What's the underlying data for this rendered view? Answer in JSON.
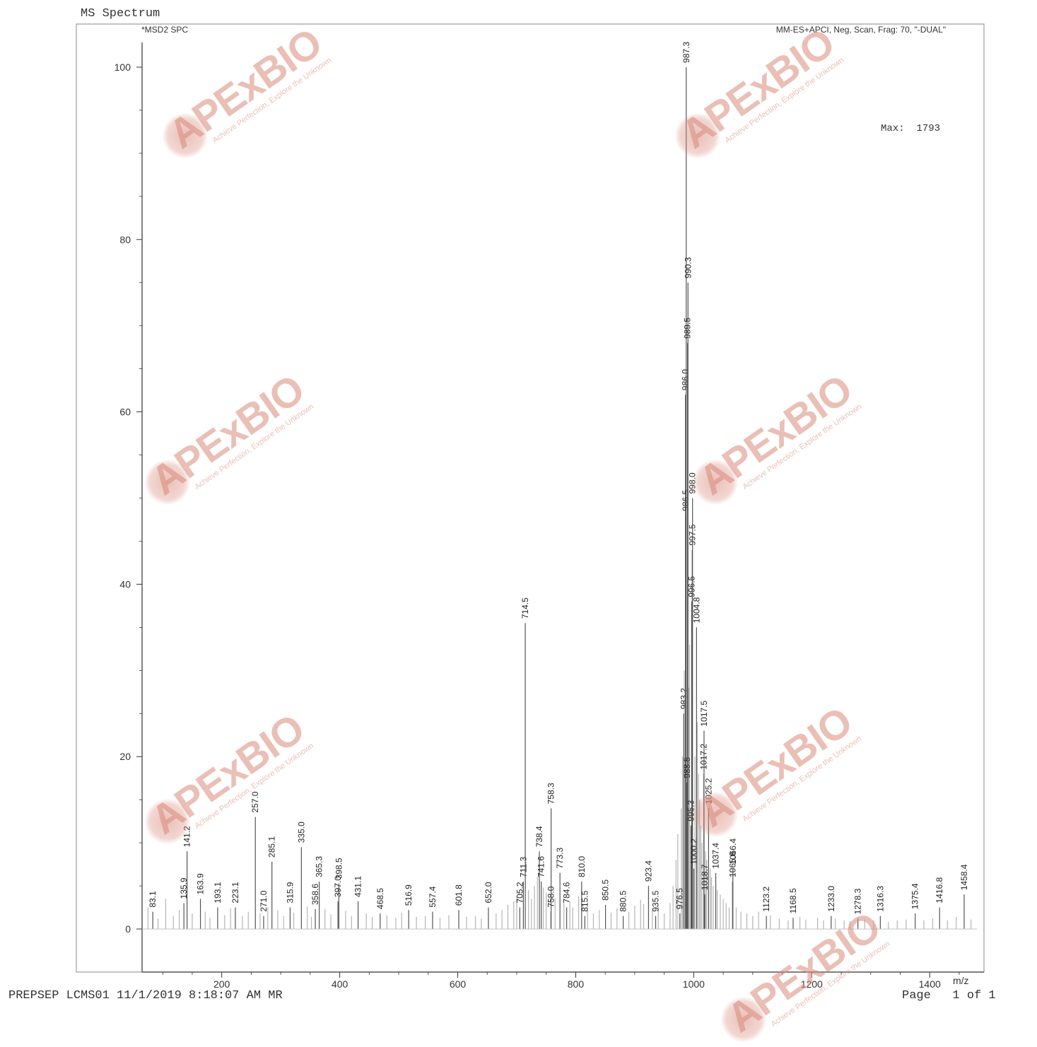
{
  "page": {
    "title": "MS Spectrum",
    "footer_left": "PREPSEP LCMS01 11/1/2019 8:18:07 AM MR",
    "footer_right": "Page   1 of 1"
  },
  "watermark": {
    "brand": "APExBIO",
    "tagline": "Achieve Perfection, Explore the Unknown"
  },
  "colors": {
    "axis": "#333333",
    "major_peak": "#555555",
    "minor_peak": "#b5b5b5",
    "watermark": "#d98b7c"
  },
  "chart_data": {
    "type": "bar",
    "title": "MS Spectrum",
    "signal_label": "*MSD2 SPC",
    "method_label": "MM-ES+APCI, Neg, Scan, Frag: 70, \"-DUAL\"",
    "max_label": "Max:  1793",
    "xlabel": "m/z",
    "ylabel": "",
    "xlim": [
      65,
      1492
    ],
    "ylim": [
      -5,
      105
    ],
    "xticks": [
      200,
      400,
      600,
      800,
      1000,
      1200,
      1400
    ],
    "yticks": [
      0,
      20,
      40,
      60,
      80,
      100
    ],
    "grid": false,
    "legend": "none",
    "labeled_peaks": [
      {
        "x": 83.1,
        "y": 2.0,
        "label": "83.1"
      },
      {
        "x": 135.9,
        "y": 3.0,
        "label": "135.9"
      },
      {
        "x": 141.2,
        "y": 9.0,
        "label": "141.2"
      },
      {
        "x": 163.9,
        "y": 3.5,
        "label": "163.9"
      },
      {
        "x": 193.1,
        "y": 2.5,
        "label": "193.1"
      },
      {
        "x": 223.1,
        "y": 2.5,
        "label": "223.1"
      },
      {
        "x": 257.0,
        "y": 13.0,
        "label": "257.0"
      },
      {
        "x": 271.0,
        "y": 1.5,
        "label": "271.0"
      },
      {
        "x": 285.1,
        "y": 7.8,
        "label": "285.1"
      },
      {
        "x": 315.9,
        "y": 2.5,
        "label": "315.9"
      },
      {
        "x": 335.0,
        "y": 9.5,
        "label": "335.0"
      },
      {
        "x": 358.6,
        "y": 2.3,
        "label": "358.6"
      },
      {
        "x": 365.3,
        "y": 5.5,
        "label": "365.3"
      },
      {
        "x": 397.0,
        "y": 3.2,
        "label": "397.0"
      },
      {
        "x": 398.5,
        "y": 5.3,
        "label": "398.5"
      },
      {
        "x": 431.1,
        "y": 3.2,
        "label": "431.1"
      },
      {
        "x": 468.5,
        "y": 1.8,
        "label": "468.5"
      },
      {
        "x": 516.9,
        "y": 2.2,
        "label": "516.9"
      },
      {
        "x": 557.4,
        "y": 2.0,
        "label": "557.4"
      },
      {
        "x": 601.8,
        "y": 2.2,
        "label": "601.8"
      },
      {
        "x": 652.0,
        "y": 2.5,
        "label": "652.0"
      },
      {
        "x": 705.2,
        "y": 2.5,
        "label": "705.2"
      },
      {
        "x": 711.3,
        "y": 5.5,
        "label": "711.3"
      },
      {
        "x": 714.5,
        "y": 35.5,
        "label": "714.5"
      },
      {
        "x": 738.4,
        "y": 9.0,
        "label": "738.4"
      },
      {
        "x": 741.6,
        "y": 5.5,
        "label": "741.6"
      },
      {
        "x": 758.0,
        "y": 2.0,
        "label": "758.0"
      },
      {
        "x": 758.3,
        "y": 14.0,
        "label": "758.3"
      },
      {
        "x": 773.3,
        "y": 6.5,
        "label": "773.3"
      },
      {
        "x": 784.6,
        "y": 2.5,
        "label": "784.6"
      },
      {
        "x": 810.0,
        "y": 5.5,
        "label": "810.0"
      },
      {
        "x": 815.5,
        "y": 1.5,
        "label": "815.5"
      },
      {
        "x": 850.5,
        "y": 2.8,
        "label": "850.5"
      },
      {
        "x": 880.5,
        "y": 1.5,
        "label": "880.5"
      },
      {
        "x": 923.4,
        "y": 5.0,
        "label": "923.4"
      },
      {
        "x": 935.5,
        "y": 1.5,
        "label": "935.5"
      },
      {
        "x": 976.5,
        "y": 1.8,
        "label": "976.5"
      },
      {
        "x": 983.2,
        "y": 25.0,
        "label": "983.2"
      },
      {
        "x": 986.0,
        "y": 62.0,
        "label": "986.0"
      },
      {
        "x": 986.5,
        "y": 48.0,
        "label": "986.5"
      },
      {
        "x": 987.3,
        "y": 100.0,
        "label": "987.3"
      },
      {
        "x": 988.5,
        "y": 17.0,
        "label": "988.5"
      },
      {
        "x": 989.5,
        "y": 68.0,
        "label": "989.5"
      },
      {
        "x": 990.3,
        "y": 75.0,
        "label": "990.3"
      },
      {
        "x": 995.3,
        "y": 12.0,
        "label": "995.3"
      },
      {
        "x": 996.5,
        "y": 38.0,
        "label": "996.5"
      },
      {
        "x": 997.5,
        "y": 44.0,
        "label": "997.5"
      },
      {
        "x": 998.0,
        "y": 50.0,
        "label": "998.0"
      },
      {
        "x": 1000.2,
        "y": 7.0,
        "label": "1000.2"
      },
      {
        "x": 1004.8,
        "y": 35.0,
        "label": "1004.8"
      },
      {
        "x": 1017.2,
        "y": 18.0,
        "label": "1017.2"
      },
      {
        "x": 1017.5,
        "y": 23.0,
        "label": "1017.5"
      },
      {
        "x": 1018.7,
        "y": 4.0,
        "label": "1018.7"
      },
      {
        "x": 1025.2,
        "y": 14.0,
        "label": "1025.2"
      },
      {
        "x": 1037.4,
        "y": 6.5,
        "label": "1037.4"
      },
      {
        "x": 1065.8,
        "y": 5.5,
        "label": "1065.8"
      },
      {
        "x": 1066.4,
        "y": 7.0,
        "label": "1066.4"
      },
      {
        "x": 1123.2,
        "y": 1.5,
        "label": "1123.2"
      },
      {
        "x": 1168.5,
        "y": 1.3,
        "label": "1168.5"
      },
      {
        "x": 1233.0,
        "y": 1.5,
        "label": "1233.0"
      },
      {
        "x": 1278.3,
        "y": 1.2,
        "label": "1278.3"
      },
      {
        "x": 1316.3,
        "y": 1.5,
        "label": "1316.3"
      },
      {
        "x": 1375.4,
        "y": 1.8,
        "label": "1375.4"
      },
      {
        "x": 1416.8,
        "y": 2.5,
        "label": "1416.8"
      },
      {
        "x": 1458.4,
        "y": 4.0,
        "label": "1458.4"
      }
    ],
    "minor_peaks": [
      [
        75,
        2.5
      ],
      [
        92,
        1.2
      ],
      [
        105,
        3.5
      ],
      [
        118,
        1.5
      ],
      [
        128,
        2.2
      ],
      [
        150,
        1.8
      ],
      [
        172,
        2.0
      ],
      [
        180,
        1.3
      ],
      [
        205,
        1.6
      ],
      [
        215,
        2.4
      ],
      [
        235,
        1.5
      ],
      [
        245,
        2.0
      ],
      [
        265,
        1.8
      ],
      [
        278,
        2.5
      ],
      [
        295,
        2.2
      ],
      [
        305,
        1.5
      ],
      [
        322,
        1.9
      ],
      [
        345,
        2.6
      ],
      [
        352,
        1.4
      ],
      [
        375,
        2.3
      ],
      [
        385,
        1.7
      ],
      [
        410,
        2.1
      ],
      [
        420,
        1.5
      ],
      [
        445,
        1.8
      ],
      [
        455,
        1.4
      ],
      [
        480,
        1.6
      ],
      [
        495,
        1.3
      ],
      [
        505,
        1.9
      ],
      [
        530,
        1.4
      ],
      [
        545,
        1.5
      ],
      [
        570,
        1.3
      ],
      [
        585,
        1.6
      ],
      [
        615,
        1.4
      ],
      [
        630,
        1.5
      ],
      [
        640,
        1.2
      ],
      [
        665,
        1.8
      ],
      [
        675,
        2.2
      ],
      [
        685,
        2.8
      ],
      [
        695,
        3.2
      ],
      [
        700,
        3.8
      ],
      [
        720,
        4.5
      ],
      [
        725,
        3.5
      ],
      [
        730,
        5.0
      ],
      [
        735,
        6.0
      ],
      [
        745,
        4.8
      ],
      [
        750,
        4.2
      ],
      [
        765,
        3.6
      ],
      [
        780,
        3.0
      ],
      [
        790,
        3.2
      ],
      [
        795,
        2.5
      ],
      [
        805,
        3.8
      ],
      [
        820,
        2.4
      ],
      [
        830,
        1.8
      ],
      [
        840,
        2.2
      ],
      [
        860,
        1.9
      ],
      [
        870,
        2.4
      ],
      [
        890,
        2.0
      ],
      [
        900,
        2.7
      ],
      [
        910,
        3.4
      ],
      [
        915,
        2.9
      ],
      [
        930,
        2.4
      ],
      [
        940,
        2.6
      ],
      [
        950,
        1.8
      ],
      [
        960,
        3.0
      ],
      [
        965,
        5.0
      ],
      [
        970,
        8.0
      ],
      [
        973,
        11.0
      ],
      [
        979,
        14.0
      ],
      [
        981,
        20.0
      ],
      [
        984,
        30.0
      ],
      [
        992,
        28.0
      ],
      [
        993,
        33.0
      ],
      [
        1002,
        20.0
      ],
      [
        1006,
        24.0
      ],
      [
        1008,
        18.0
      ],
      [
        1010,
        15.0
      ],
      [
        1012,
        12.0
      ],
      [
        1014,
        10.0
      ],
      [
        1020,
        9.0
      ],
      [
        1022,
        8.0
      ],
      [
        1028,
        7.0
      ],
      [
        1030,
        6.0
      ],
      [
        1033,
        5.0
      ],
      [
        1040,
        4.5
      ],
      [
        1045,
        4.0
      ],
      [
        1050,
        3.5
      ],
      [
        1055,
        3.0
      ],
      [
        1060,
        2.5
      ],
      [
        1072,
        2.5
      ],
      [
        1080,
        2.0
      ],
      [
        1090,
        1.8
      ],
      [
        1100,
        1.5
      ],
      [
        1110,
        2.0
      ],
      [
        1130,
        1.6
      ],
      [
        1145,
        1.2
      ],
      [
        1160,
        1.0
      ],
      [
        1180,
        1.4
      ],
      [
        1190,
        1.1
      ],
      [
        1210,
        1.3
      ],
      [
        1220,
        1.0
      ],
      [
        1240,
        1.2
      ],
      [
        1255,
        1.0
      ],
      [
        1265,
        0.9
      ],
      [
        1290,
        1.1
      ],
      [
        1305,
        1.0
      ],
      [
        1330,
        0.8
      ],
      [
        1345,
        1.0
      ],
      [
        1360,
        1.1
      ],
      [
        1390,
        1.0
      ],
      [
        1405,
        1.2
      ],
      [
        1430,
        1.0
      ],
      [
        1445,
        1.4
      ],
      [
        1470,
        1.1
      ]
    ]
  }
}
